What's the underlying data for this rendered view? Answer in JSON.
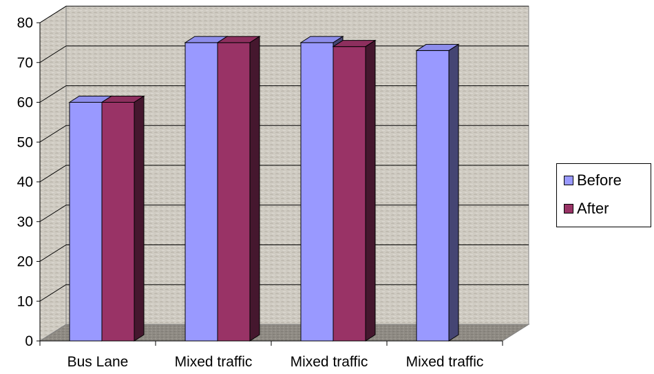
{
  "chart_data": {
    "type": "bar",
    "categories": [
      "Bus Lane",
      "Mixed traffic",
      "Mixed traffic",
      "Mixed traffic"
    ],
    "series": [
      {
        "name": "Before",
        "values": [
          60,
          75,
          75,
          73
        ]
      },
      {
        "name": "After",
        "values": [
          60,
          75,
          74,
          null
        ]
      }
    ],
    "colors": {
      "Before": "#9999ff",
      "After": "#993366"
    },
    "ylim": [
      0,
      80
    ],
    "yticks": [
      0,
      10,
      20,
      30,
      40,
      50,
      60,
      70,
      80
    ],
    "grid": true,
    "legend_position": "right",
    "title": "",
    "xlabel": "",
    "ylabel": ""
  }
}
